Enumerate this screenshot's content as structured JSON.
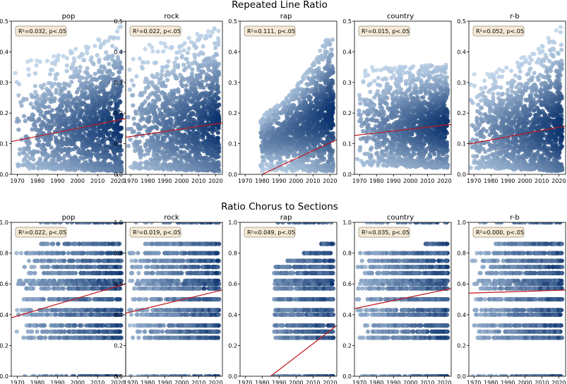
{
  "chart_data": [
    {
      "type": "scatter",
      "title": "Repeated Line Ratio",
      "xlim": [
        1967,
        2024
      ],
      "ylim": [
        0,
        0.5
      ],
      "xticks": [
        1970,
        1980,
        1990,
        2000,
        2010,
        2020
      ],
      "yticks": [
        0.0,
        0.1,
        0.2,
        0.3,
        0.4,
        0.5
      ],
      "ytick_labels": [
        "0.0",
        "0.1",
        "0.2",
        "0.3",
        "0.4",
        "0.5"
      ],
      "panels": [
        {
          "genre": "pop",
          "stat": "R²=0.032, p<.05",
          "trend": {
            "x": [
              1967,
              2024
            ],
            "y": [
              0.107,
              0.182
            ]
          },
          "density_mean": [
            0.14,
            0.16
          ],
          "density_max": [
            0.37,
            0.49
          ],
          "density_min": [
            0.02,
            0.01
          ]
        },
        {
          "genre": "rock",
          "stat": "R²=0.022, p<.05",
          "trend": {
            "x": [
              1967,
              2024
            ],
            "y": [
              0.121,
              0.168
            ]
          },
          "density_mean": [
            0.15,
            0.16
          ],
          "density_max": [
            0.42,
            0.49
          ],
          "density_min": [
            0.02,
            0.01
          ]
        },
        {
          "genre": "rap",
          "stat": "R²=0.111, p<.05",
          "trend": {
            "x": [
              1980,
              2024
            ],
            "y": [
              0.0,
              0.113
            ]
          },
          "density_mean": [
            0.08,
            0.2
          ],
          "density_max": [
            0.18,
            0.49
          ],
          "density_min": [
            0.01,
            0.01
          ]
        },
        {
          "genre": "country",
          "stat": "R²=0.015, p<.05",
          "trend": {
            "x": [
              1967,
              2024
            ],
            "y": [
              0.127,
              0.163
            ]
          },
          "density_mean": [
            0.15,
            0.16
          ],
          "density_max": [
            0.35,
            0.36
          ],
          "density_min": [
            0.03,
            0.02
          ]
        },
        {
          "genre": "r-b",
          "stat": "R²=0.052, p<.05",
          "trend": {
            "x": [
              1967,
              2024
            ],
            "y": [
              0.099,
              0.158
            ]
          },
          "density_mean": [
            0.13,
            0.15
          ],
          "density_max": [
            0.33,
            0.49
          ],
          "density_min": [
            0.02,
            0.01
          ]
        }
      ]
    },
    {
      "type": "scatter",
      "title": "Ratio Chorus to Sections",
      "xlim": [
        1967,
        2024
      ],
      "ylim": [
        0,
        1.0
      ],
      "xticks": [
        1970,
        1980,
        1990,
        2000,
        2010,
        2020
      ],
      "yticks": [
        0.0,
        0.2,
        0.4,
        0.6,
        0.8,
        1.0
      ],
      "ytick_labels": [
        "0.0",
        "0.2",
        "0.4",
        "0.6",
        "0.8",
        "1.0"
      ],
      "panels": [
        {
          "genre": "pop",
          "stat": "R²=0.022, p<.05",
          "trend": {
            "x": [
              1967,
              2024
            ],
            "y": [
              0.38,
              0.6
            ]
          },
          "level_min": [
            0.18,
            0.1
          ],
          "level_max": [
            0.84,
            0.92
          ]
        },
        {
          "genre": "rock",
          "stat": "R²=0.019, p<.05",
          "trend": {
            "x": [
              1967,
              2024
            ],
            "y": [
              0.41,
              0.56
            ]
          },
          "level_min": [
            0.18,
            0.1
          ],
          "level_max": [
            0.85,
            0.92
          ]
        },
        {
          "genre": "rap",
          "stat": "R²=0.049, p<.05",
          "trend": {
            "x": [
              1985,
              2024
            ],
            "y": [
              0.0,
              0.33
            ]
          },
          "level_min": [
            0.25,
            0.08
          ],
          "level_max": [
            0.6,
            0.9
          ]
        },
        {
          "genre": "country",
          "stat": "R²=0.035, p<.05",
          "trend": {
            "x": [
              1967,
              2024
            ],
            "y": [
              0.44,
              0.57
            ]
          },
          "level_min": [
            0.18,
            0.1
          ],
          "level_max": [
            0.8,
            0.88
          ]
        },
        {
          "genre": "r-b",
          "stat": "R²=0.000, p<.05",
          "trend": {
            "x": [
              1967,
              2024
            ],
            "y": [
              0.54,
              0.56
            ]
          },
          "level_min": [
            0.18,
            0.1
          ],
          "level_max": [
            0.84,
            0.92
          ]
        }
      ]
    }
  ],
  "colors": {
    "cmap_low": "#c6dbef",
    "cmap_high": "#08306b",
    "trend": "#c0151b",
    "stat_box_fill": "#f5ead5",
    "stat_box_edge": "#9a8f80"
  }
}
